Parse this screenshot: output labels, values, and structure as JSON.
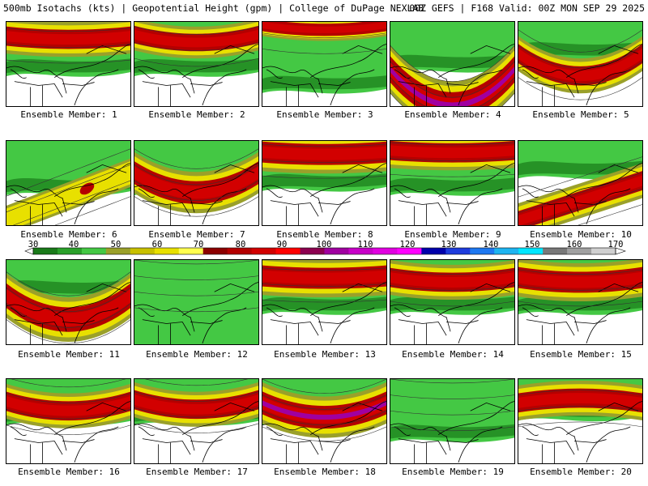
{
  "header": {
    "left": "500mb Isotachs (kts) | Geopotential Height (gpm) | College of DuPage NEXLAB",
    "right": "00Z GEFS | F168 Valid: 00Z MON SEP 29 2025"
  },
  "colorbar": {
    "labels": [
      "30",
      "40",
      "50",
      "60",
      "70",
      "80",
      "90",
      "100",
      "110",
      "120",
      "130",
      "140",
      "150",
      "160",
      "170"
    ],
    "colors": [
      "#1a7a1a",
      "#2aa02a",
      "#44c844",
      "#9aa02a",
      "#c8c000",
      "#e8e000",
      "#ffff50",
      "#8c0000",
      "#b40000",
      "#d20000",
      "#ff0000",
      "#8c0050",
      "#a000a0",
      "#c800c8",
      "#e000e0",
      "#ff00ff",
      "#0000aa",
      "#1e3cdc",
      "#1e78f0",
      "#1eb4f0",
      "#00e6ff",
      "#787878",
      "#a0a0a0",
      "#d0d0d0"
    ]
  },
  "members": [
    {
      "label": "Ensemble Member: 1"
    },
    {
      "label": "Ensemble Member: 2"
    },
    {
      "label": "Ensemble Member: 3"
    },
    {
      "label": "Ensemble Member: 4"
    },
    {
      "label": "Ensemble Member: 5"
    },
    {
      "label": "Ensemble Member: 6"
    },
    {
      "label": "Ensemble Member: 7"
    },
    {
      "label": "Ensemble Member: 8"
    },
    {
      "label": "Ensemble Member: 9"
    },
    {
      "label": "Ensemble Member: 10"
    },
    {
      "label": "Ensemble Member: 11"
    },
    {
      "label": "Ensemble Member: 12"
    },
    {
      "label": "Ensemble Member: 13"
    },
    {
      "label": "Ensemble Member: 14"
    },
    {
      "label": "Ensemble Member: 15"
    },
    {
      "label": "Ensemble Member: 16"
    },
    {
      "label": "Ensemble Member: 17"
    },
    {
      "label": "Ensemble Member: 18"
    },
    {
      "label": "Ensemble Member: 19"
    },
    {
      "label": "Ensemble Member: 20"
    }
  ]
}
